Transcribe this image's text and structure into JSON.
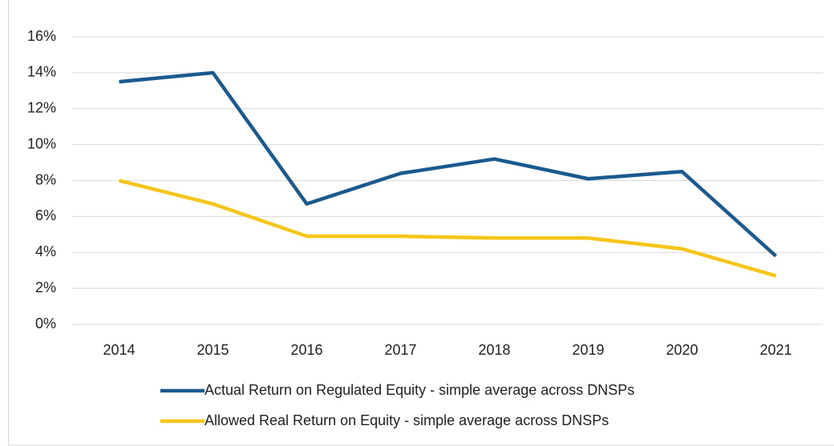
{
  "chart_data": {
    "type": "line",
    "categories": [
      "2014",
      "2015",
      "2016",
      "2017",
      "2018",
      "2019",
      "2020",
      "2021"
    ],
    "series": [
      {
        "name": "Actual Return on Regulated Equity - simple average across DNSPs",
        "color": "#1b5a8e",
        "values": [
          13.5,
          14.0,
          6.7,
          8.4,
          9.2,
          8.1,
          8.5,
          3.8
        ]
      },
      {
        "name": "Allowed Real Return on Equity - simple average across DNSPs",
        "color": "#f5c518",
        "values": [
          8.0,
          6.7,
          4.9,
          4.9,
          4.8,
          4.8,
          4.2,
          2.7
        ]
      }
    ],
    "ylim": [
      0,
      16
    ],
    "yticks": [
      {
        "value": 0,
        "label": "0%"
      },
      {
        "value": 2,
        "label": "2%"
      },
      {
        "value": 4,
        "label": "4%"
      },
      {
        "value": 6,
        "label": "6%"
      },
      {
        "value": 8,
        "label": "8%"
      },
      {
        "value": 10,
        "label": "10%"
      },
      {
        "value": 12,
        "label": "12%"
      },
      {
        "value": 14,
        "label": "14%"
      },
      {
        "value": 16,
        "label": "16%"
      }
    ],
    "grid": true,
    "legend": "bottom"
  }
}
